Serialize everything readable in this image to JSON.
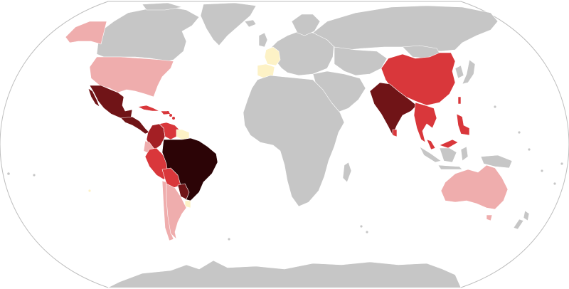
{
  "map": {
    "projection": "robinson",
    "palette": {
      "none": "#c6c6c6",
      "lowest": "#fdf2c6",
      "low": "#efadad",
      "medium": "#d9373b",
      "high": "#a31f24",
      "very_high": "#701417",
      "highest": "#2c0406",
      "border": "#ffffff",
      "ocean": "#ffffff",
      "outline": "#bdbdbd"
    },
    "countries": {
      "brazil": "highest",
      "colombia": "high",
      "venezuela": "medium",
      "guianas": "lowest",
      "ecuador": "low",
      "peru": "medium",
      "bolivia": "medium",
      "paraguay": "very_high",
      "chile": "low",
      "argentina": "low",
      "uruguay": "lowest",
      "mexico": "very_high",
      "central_america": "very_high",
      "caribbean": "medium",
      "usa": "low",
      "alaska": "low",
      "canada": "none",
      "greenland": "none",
      "france": "lowest",
      "spain": "lowest",
      "europe": "none",
      "russia": "none",
      "africa": "none",
      "middle_east": "none",
      "central_asia": "none",
      "india": "very_high",
      "sri_lanka": "medium",
      "china": "medium",
      "mongolia": "none",
      "korea_japan": "none",
      "mainland_southeast_asia": "medium",
      "malaysia": "medium",
      "indonesia": "none",
      "philippines": "medium",
      "taiwan": "medium",
      "australia": "low",
      "new_zealand": "none",
      "antarctica": "none"
    }
  }
}
